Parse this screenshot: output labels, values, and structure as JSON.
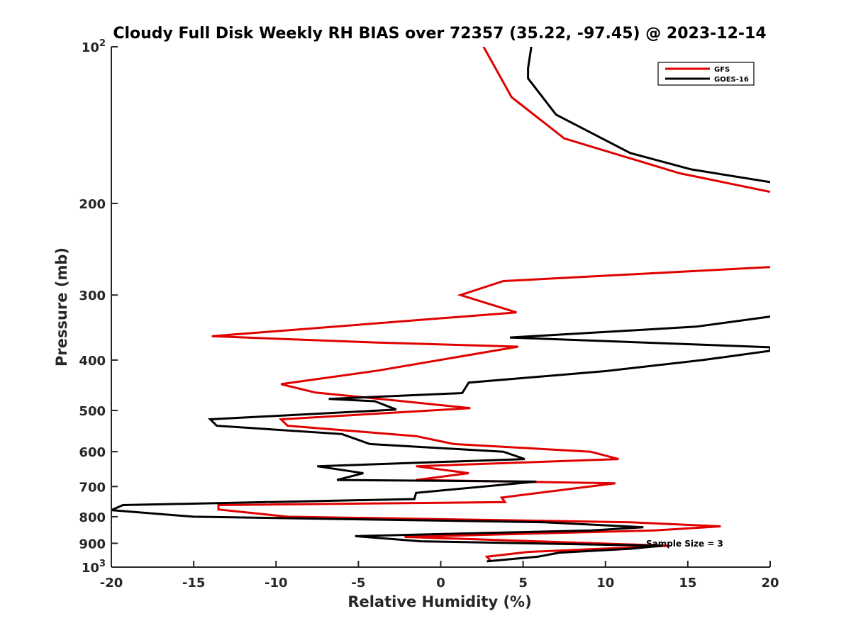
{
  "chart_data": {
    "type": "line",
    "title": "Cloudy Full Disk Weekly RH BIAS over 72357 (35.22, -97.45) @ 2023-12-14",
    "xlabel": "Relative Humidity (%)",
    "ylabel": "Pressure (mb)",
    "xlim": [
      -20,
      20
    ],
    "ylim": [
      100,
      1000
    ],
    "y_scale": "log",
    "y_reversed": true,
    "grid": false,
    "legend_position": "top-right",
    "x_ticks": [
      -20,
      -15,
      -10,
      -5,
      0,
      5,
      10,
      15,
      20
    ],
    "x_tick_labels": [
      "-20",
      "-15",
      "-10",
      "-5",
      "0",
      "5",
      "10",
      "15",
      "20"
    ],
    "y_ticks": [
      100,
      200,
      300,
      400,
      500,
      600,
      700,
      800,
      900,
      1000
    ],
    "y_tick_labels": [
      {
        "base": "10",
        "sup": "2"
      },
      {
        "base": "200",
        "sup": ""
      },
      {
        "base": "300",
        "sup": ""
      },
      {
        "base": "400",
        "sup": ""
      },
      {
        "base": "500",
        "sup": ""
      },
      {
        "base": "600",
        "sup": ""
      },
      {
        "base": "700",
        "sup": ""
      },
      {
        "base": "800",
        "sup": ""
      },
      {
        "base": "900",
        "sup": ""
      },
      {
        "base": "10",
        "sup": "3"
      }
    ],
    "annotation": "Sample Size = 3",
    "series": [
      {
        "name": "GFS",
        "color": "#e00000",
        "segments": [
          [
            [
              2.6,
              100
            ],
            [
              4.3,
              125
            ],
            [
              7.5,
              150
            ],
            [
              14.5,
              175
            ],
            [
              20,
              190
            ]
          ],
          [
            [
              20,
              265
            ],
            [
              3.8,
              282
            ],
            [
              1.2,
              300
            ],
            [
              4.6,
              324
            ],
            [
              -13.9,
              360
            ],
            [
              -4.0,
              370
            ],
            [
              4.7,
              377
            ],
            [
              -3.8,
              419
            ],
            [
              -9.7,
              445
            ],
            [
              -7.6,
              462
            ],
            [
              -2.3,
              480
            ],
            [
              1.8,
              495
            ],
            [
              -9.7,
              520
            ],
            [
              -9.3,
              535
            ],
            [
              -1.5,
              560
            ],
            [
              0.8,
              580
            ],
            [
              9.1,
              600
            ],
            [
              10.8,
              620
            ],
            [
              -1.5,
              640
            ],
            [
              1.7,
              660
            ],
            [
              -1.5,
              680
            ],
            [
              10.6,
              690
            ],
            [
              3.7,
              735
            ],
            [
              3.9,
              750
            ],
            [
              -13.5,
              760
            ],
            [
              -13.5,
              775
            ],
            [
              -9.3,
              800
            ],
            [
              11.5,
              820
            ],
            [
              17.0,
              835
            ],
            [
              13.0,
              850
            ],
            [
              -2.2,
              875
            ],
            [
              13.9,
              910
            ],
            [
              5.3,
              935
            ],
            [
              2.8,
              955
            ],
            [
              3.0,
              970
            ]
          ]
        ]
      },
      {
        "name": "GOES-16",
        "color": "#000000",
        "segments": [
          [
            [
              5.5,
              100
            ],
            [
              5.3,
              110
            ],
            [
              5.3,
              115
            ],
            [
              7.0,
              135
            ],
            [
              11.5,
              160
            ],
            [
              15.2,
              172
            ],
            [
              20,
              182
            ]
          ],
          [
            [
              20,
              330
            ],
            [
              15.5,
              345
            ],
            [
              4.2,
              362
            ],
            [
              20,
              378
            ],
            [
              20,
              384
            ],
            [
              15.9,
              400
            ],
            [
              10.0,
              420
            ],
            [
              1.7,
              442
            ],
            [
              1.3,
              463
            ],
            [
              -6.8,
              475
            ],
            [
              -4.0,
              480
            ],
            [
              -2.7,
              498
            ],
            [
              -14.0,
              520
            ],
            [
              -13.6,
              535
            ],
            [
              -6.0,
              555
            ],
            [
              -4.3,
              580
            ],
            [
              3.8,
              600
            ],
            [
              5.1,
              620
            ],
            [
              -7.5,
              640
            ],
            [
              -4.7,
              660
            ],
            [
              -6.3,
              680
            ],
            [
              5.8,
              685
            ],
            [
              -1.5,
              720
            ],
            [
              -1.6,
              740
            ],
            [
              -19.3,
              760
            ],
            [
              -20,
              777
            ],
            [
              -15.0,
              800
            ],
            [
              6.3,
              820
            ],
            [
              12.3,
              838
            ],
            [
              9.2,
              850
            ],
            [
              -5.2,
              872
            ],
            [
              -1.2,
              892
            ],
            [
              13.4,
              910
            ],
            [
              11.5,
              922
            ],
            [
              7.2,
              938
            ],
            [
              5.9,
              955
            ],
            [
              2.8,
              975
            ]
          ]
        ]
      }
    ]
  }
}
